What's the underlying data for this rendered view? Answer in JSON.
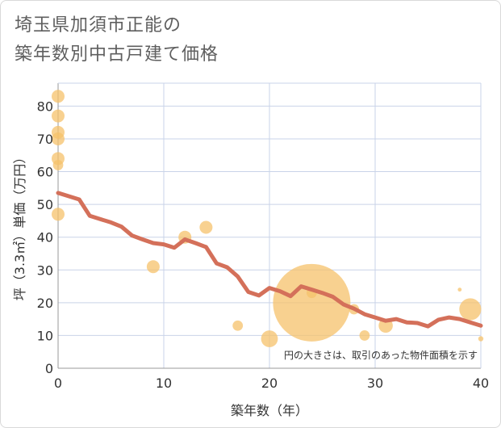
{
  "title_lines": [
    "埼玉県加須市正能の",
    "築年数別中古戸建て価格"
  ],
  "colors": {
    "bubble": "#f5c26b",
    "line": "#d4705a",
    "grid": "#c9d3e8",
    "axis": "#999999"
  },
  "chart_data": {
    "type": "scatter",
    "xlabel": "築年数（年）",
    "ylabel": "坪（3.3㎡）単価（万円）",
    "xlim": [
      0,
      40
    ],
    "ylim": [
      0,
      87
    ],
    "xticks": [
      0,
      10,
      20,
      30,
      40
    ],
    "yticks": [
      0,
      10,
      20,
      30,
      40,
      50,
      60,
      70,
      80
    ],
    "note": "円の大きさは、取引のあった物件面積を示す",
    "grid": true,
    "points": [
      {
        "x": 0,
        "y": 83,
        "size": 1
      },
      {
        "x": 0,
        "y": 77,
        "size": 1
      },
      {
        "x": 0,
        "y": 72,
        "size": 1
      },
      {
        "x": 0,
        "y": 70,
        "size": 1
      },
      {
        "x": 0,
        "y": 64,
        "size": 1
      },
      {
        "x": 0,
        "y": 62,
        "size": 0.8
      },
      {
        "x": 0,
        "y": 47,
        "size": 1
      },
      {
        "x": 9,
        "y": 31,
        "size": 1
      },
      {
        "x": 12,
        "y": 40,
        "size": 1
      },
      {
        "x": 14,
        "y": 43,
        "size": 1
      },
      {
        "x": 17,
        "y": 13,
        "size": 0.8
      },
      {
        "x": 20,
        "y": 9,
        "size": 1.3
      },
      {
        "x": 24,
        "y": 20,
        "size": 6
      },
      {
        "x": 24,
        "y": 23,
        "size": 0.8
      },
      {
        "x": 28,
        "y": 18,
        "size": 0.8
      },
      {
        "x": 29,
        "y": 10,
        "size": 0.8
      },
      {
        "x": 31,
        "y": 13,
        "size": 1.1
      },
      {
        "x": 38,
        "y": 24,
        "size": 0.3
      },
      {
        "x": 39,
        "y": 18,
        "size": 1.7
      },
      {
        "x": 40,
        "y": 9,
        "size": 0.4
      }
    ],
    "trend": {
      "x": [
        0,
        2,
        3,
        4,
        5,
        6,
        7,
        8,
        9,
        10,
        11,
        12,
        13,
        14,
        15,
        16,
        17,
        18,
        19,
        20,
        21,
        22,
        23,
        24,
        25,
        26,
        27,
        28,
        29,
        30,
        31,
        32,
        33,
        34,
        35,
        36,
        37,
        38,
        39,
        40
      ],
      "y": [
        53.5,
        51.5,
        46.5,
        45.5,
        44.5,
        43.2,
        40.5,
        39.3,
        38.2,
        37.8,
        36.8,
        39.3,
        38.2,
        37.0,
        32.0,
        30.8,
        28.0,
        23.3,
        22.2,
        24.5,
        23.5,
        22.0,
        25.0,
        24.0,
        23.0,
        21.8,
        19.5,
        18.2,
        16.5,
        15.5,
        14.5,
        15.0,
        14.0,
        13.8,
        12.8,
        14.8,
        15.5,
        15.0,
        14.0,
        13.0
      ]
    }
  }
}
